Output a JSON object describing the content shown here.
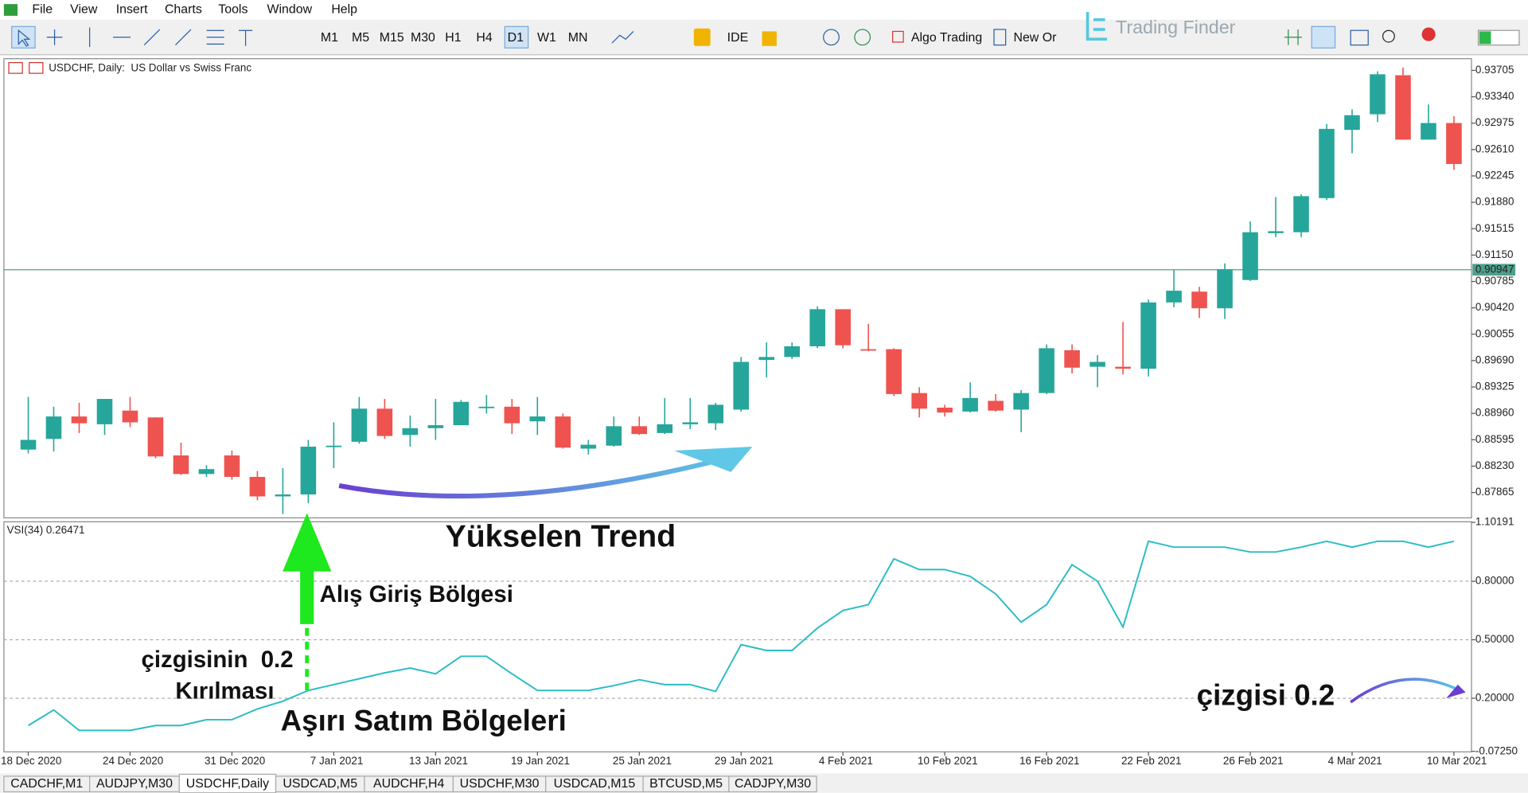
{
  "menu": [
    "File",
    "View",
    "Insert",
    "Charts",
    "Tools",
    "Window",
    "Help"
  ],
  "toolbar": {
    "timeframes": [
      "M1",
      "M5",
      "M15",
      "M30",
      "H1",
      "H4",
      "D1",
      "W1",
      "MN"
    ],
    "active_timeframe": "D1",
    "ide": "IDE",
    "algo_trading": "Algo Trading",
    "new_order": "New Or"
  },
  "watermark": "Trading Finder",
  "chart_data": [
    {
      "type": "candlestick",
      "title": "USDCHF, Daily:  US Dollar vs Swiss Franc",
      "categories": [
        "18 Dec 2020",
        null,
        null,
        null,
        "24 Dec 2020",
        null,
        null,
        null,
        "31 Dec 2020",
        null,
        null,
        null,
        "7 Jan 2021",
        null,
        null,
        null,
        "13 Jan 2021",
        null,
        null,
        null,
        "19 Jan 2021",
        null,
        null,
        null,
        "25 Jan 2021",
        null,
        null,
        null,
        "29 Jan 2021",
        null,
        null,
        null,
        "4 Feb 2021",
        null,
        null,
        null,
        "10 Feb 2021",
        null,
        null,
        null,
        "16 Feb 2021",
        null,
        null,
        null,
        "22 Feb 2021",
        null,
        null,
        null,
        "26 Feb 2021",
        null,
        null,
        null,
        "4 Mar 2021",
        null,
        null,
        null,
        "10 Mar 2021"
      ],
      "open": [
        0.88459,
        0.88607,
        0.88917,
        0.88809,
        0.88998,
        0.88904,
        0.88378,
        0.88121,
        0.88378,
        0.88081,
        0.87811,
        0.87838,
        0.88499,
        0.88567,
        0.89025,
        0.88661,
        0.88755,
        0.88796,
        0.89039,
        0.89052,
        0.8885,
        0.88917,
        0.88472,
        0.88513,
        0.88782,
        0.88688,
        0.88809,
        0.88823,
        0.89012,
        0.89699,
        0.8974,
        0.89888,
        0.90401,
        0.89848,
        0.89848,
        0.89241,
        0.89039,
        0.88985,
        0.89133,
        0.89012,
        0.89241,
        0.89834,
        0.89605,
        0.89605,
        0.89578,
        0.90495,
        0.90644,
        0.90414,
        0.90805,
        0.91453,
        0.91466,
        0.91938,
        0.92882,
        0.93098,
        0.93638,
        0.92747,
        0.92977
      ],
      "high": [
        0.89187,
        0.89052,
        0.89106,
        0.8916,
        0.89187,
        0.88904,
        0.88553,
        0.88243,
        0.88445,
        0.88162,
        0.88202,
        0.88593,
        0.88836,
        0.89187,
        0.8916,
        0.88931,
        0.8916,
        0.89146,
        0.89214,
        0.8916,
        0.89187,
        0.88958,
        0.88593,
        0.88917,
        0.88917,
        0.89173,
        0.89173,
        0.89106,
        0.8974,
        0.89942,
        0.89942,
        0.90441,
        0.90401,
        0.90198,
        0.89861,
        0.89322,
        0.89079,
        0.89389,
        0.89227,
        0.89281,
        0.89915,
        0.89915,
        0.89767,
        0.90225,
        0.90536,
        0.9094,
        0.90711,
        0.91035,
        0.91615,
        0.91952,
        0.91992,
        0.92963,
        0.93166,
        0.93692,
        0.93745,
        0.93233,
        0.93071
      ],
      "low": [
        0.88405,
        0.88432,
        0.88688,
        0.88661,
        0.88769,
        0.88337,
        0.88108,
        0.88081,
        0.88041,
        0.87757,
        0.87568,
        0.87717,
        0.88202,
        0.8854,
        0.88607,
        0.88499,
        0.88593,
        0.88796,
        0.88958,
        0.88674,
        0.88661,
        0.88472,
        0.88391,
        0.88499,
        0.88661,
        0.88674,
        0.88742,
        0.88728,
        0.88985,
        0.89457,
        0.89713,
        0.89861,
        0.89861,
        0.89821,
        0.892,
        0.88904,
        0.88917,
        0.88971,
        0.88985,
        0.88701,
        0.89227,
        0.89511,
        0.89322,
        0.89497,
        0.8947,
        0.90428,
        0.90279,
        0.90266,
        0.90792,
        0.91399,
        0.91399,
        0.91911,
        0.92559,
        0.9299,
        0.92747,
        0.92747,
        0.92329
      ],
      "close": [
        0.88593,
        0.88917,
        0.88823,
        0.8916,
        0.88836,
        0.88364,
        0.88121,
        0.88189,
        0.88081,
        0.87811,
        0.87838,
        0.88499,
        0.88513,
        0.89025,
        0.88647,
        0.88755,
        0.88796,
        0.89119,
        0.89052,
        0.88823,
        0.88917,
        0.88486,
        0.88526,
        0.88782,
        0.88674,
        0.88809,
        0.88836,
        0.89079,
        0.89672,
        0.8974,
        0.89888,
        0.90401,
        0.89902,
        0.89834,
        0.89227,
        0.89025,
        0.88971,
        0.89173,
        0.88998,
        0.89241,
        0.89861,
        0.89592,
        0.89672,
        0.89578,
        0.90495,
        0.90657,
        0.90414,
        0.90954,
        0.91466,
        0.9148,
        0.91965,
        0.92896,
        0.93085,
        0.93651,
        0.92747,
        0.92977,
        0.9241
      ],
      "up_color": "#26a69a",
      "down_color": "#ef5350",
      "ylim": [
        0.87514,
        0.93867
      ],
      "yticks": [
        0.93705,
        {
          "value": 0.9334,
          "label": "0.93340"
        },
        0.92975,
        {
          "value": 0.9261,
          "label": "0.92610"
        },
        0.92245,
        {
          "value": 0.9188,
          "label": "0.91880"
        },
        0.91515,
        {
          "value": 0.9115,
          "label": "0.91150"
        },
        0.90785,
        {
          "value": 0.9042,
          "label": "0.90420"
        },
        0.90055,
        {
          "value": 0.8969,
          "label": "0.89690"
        },
        0.89325,
        {
          "value": 0.8896,
          "label": "0.88960"
        },
        0.88595,
        {
          "value": 0.8823,
          "label": "0.88230"
        },
        0.87865
      ],
      "current_price": 0.90947,
      "current_price_color": "#4f9e8c"
    },
    {
      "type": "line",
      "title": "VSI(34) 0.26471",
      "color": "#2bbcc4",
      "values": [
        0.06,
        0.14,
        0.035,
        0.035,
        0.035,
        0.06,
        0.06,
        0.09,
        0.09,
        0.145,
        0.185,
        0.24,
        0.27,
        0.3,
        0.33,
        0.355,
        0.325,
        0.415,
        0.415,
        0.325,
        0.24,
        0.24,
        0.24,
        0.265,
        0.295,
        0.27,
        0.27,
        0.235,
        0.475,
        0.445,
        0.445,
        0.56,
        0.65,
        0.68,
        0.915,
        0.86,
        0.86,
        0.825,
        0.735,
        0.59,
        0.68,
        0.885,
        0.8,
        0.565,
        1.005,
        0.975,
        0.975,
        0.975,
        0.95,
        0.95,
        0.975,
        1.005,
        0.975,
        1.005,
        1.005,
        0.975,
        1.005
      ],
      "ylim": [
        -0.075,
        1.105
      ],
      "yticks": [
        1.10191,
        {
          "value": 0.8,
          "label": "0.80000"
        },
        {
          "value": 0.5,
          "label": "0.50000"
        },
        {
          "value": 0.2,
          "label": "0.20000"
        },
        {
          "value": -0.0725,
          "label": "-0.07250"
        }
      ],
      "levels": [
        0.8,
        0.5,
        0.2
      ]
    }
  ],
  "annotations": {
    "trend": "Yükselen Trend",
    "entry": "Alış Giriş Bölgesi",
    "break_line1": "çizgisinin  0.2",
    "break_line2": "Kırılması",
    "oversold": "Aşırı Satım Bölgeleri",
    "line_label": "çizgisi 0.2"
  },
  "tabs": [
    "CADCHF,M1",
    "AUDJPY,M30",
    "USDCHF,Daily",
    "USDCAD,M5",
    "AUDCHF,H4",
    "USDCHF,M30",
    "USDCAD,M15",
    "BTCUSD,M5",
    "CADJPY,M30"
  ],
  "active_tab": "USDCHF,Daily"
}
